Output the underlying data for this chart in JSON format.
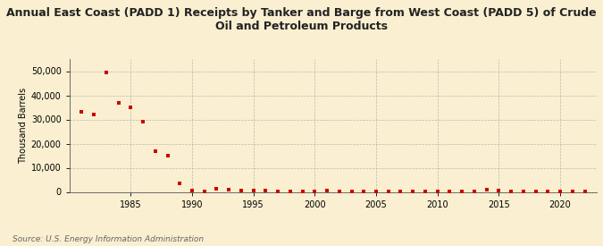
{
  "title": "Annual East Coast (PADD 1) Receipts by Tanker and Barge from West Coast (PADD 5) of Crude\nOil and Petroleum Products",
  "ylabel": "Thousand Barrels",
  "source": "Source: U.S. Energy Information Administration",
  "background_color": "#faefd0",
  "marker_color": "#cc0000",
  "years": [
    1981,
    1982,
    1983,
    1984,
    1985,
    1986,
    1987,
    1988,
    1989,
    1990,
    1991,
    1992,
    1993,
    1994,
    1995,
    1996,
    1997,
    1998,
    1999,
    2000,
    2001,
    2002,
    2003,
    2004,
    2005,
    2006,
    2007,
    2008,
    2009,
    2010,
    2011,
    2012,
    2013,
    2014,
    2015,
    2016,
    2017,
    2018,
    2019,
    2020,
    2021,
    2022
  ],
  "values": [
    33000,
    32000,
    49500,
    37000,
    35000,
    29000,
    17000,
    15000,
    3500,
    700,
    200,
    1200,
    800,
    700,
    500,
    600,
    300,
    200,
    100,
    200,
    500,
    200,
    100,
    200,
    100,
    200,
    100,
    300,
    100,
    100,
    100,
    200,
    100,
    900,
    700,
    200,
    100,
    100,
    100,
    100,
    100,
    200
  ],
  "xlim": [
    1980,
    2023
  ],
  "ylim": [
    0,
    55000
  ],
  "yticks": [
    0,
    10000,
    20000,
    30000,
    40000,
    50000
  ],
  "xticks": [
    1985,
    1990,
    1995,
    2000,
    2005,
    2010,
    2015,
    2020
  ],
  "title_fontsize": 9,
  "ylabel_fontsize": 7,
  "tick_fontsize": 7,
  "source_fontsize": 6.5
}
